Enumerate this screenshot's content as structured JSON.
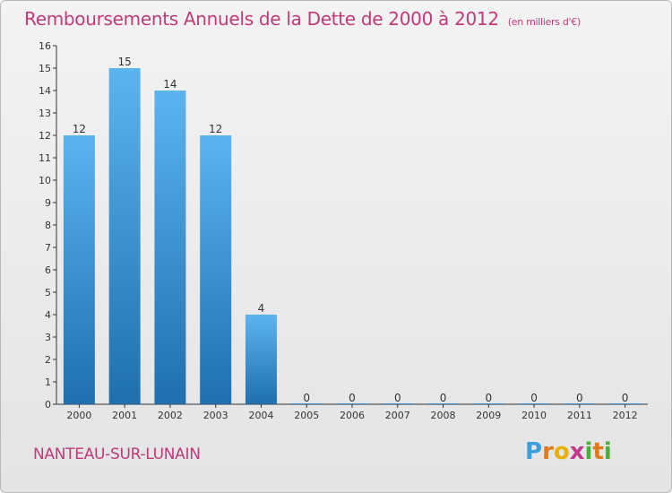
{
  "header": {
    "title": "Remboursements Annuels de la Dette de 2000 à 2012",
    "unit": "(en milliers d'€)"
  },
  "footer": {
    "commune": "NANTEAU-SUR-LUNAIN",
    "logo_text": "Proxiti"
  },
  "colors": {
    "bar_top": "#5cb4ee",
    "bar_bottom": "#1f6fae",
    "title": "#c03a7a"
  },
  "chart_data": {
    "type": "bar",
    "categories": [
      "2000",
      "2001",
      "2002",
      "2003",
      "2004",
      "2005",
      "2006",
      "2007",
      "2008",
      "2009",
      "2010",
      "2011",
      "2012"
    ],
    "values": [
      12,
      15,
      14,
      12,
      4,
      0,
      0,
      0,
      0,
      0,
      0,
      0,
      0
    ],
    "data_labels": [
      "12",
      "15",
      "14",
      "12",
      "4",
      "0",
      "0",
      "0",
      "0",
      "0",
      "0",
      "0",
      "0"
    ],
    "yticks": [
      "0",
      "1",
      "2",
      "3",
      "4",
      "5",
      "6",
      "7",
      "8",
      "9",
      "10",
      "11",
      "12",
      "13",
      "14",
      "15",
      "16"
    ],
    "ylim": [
      0,
      16
    ],
    "grid": false,
    "title": "Remboursements Annuels de la Dette de 2000 à 2012",
    "ylabel": "",
    "xlabel": ""
  }
}
